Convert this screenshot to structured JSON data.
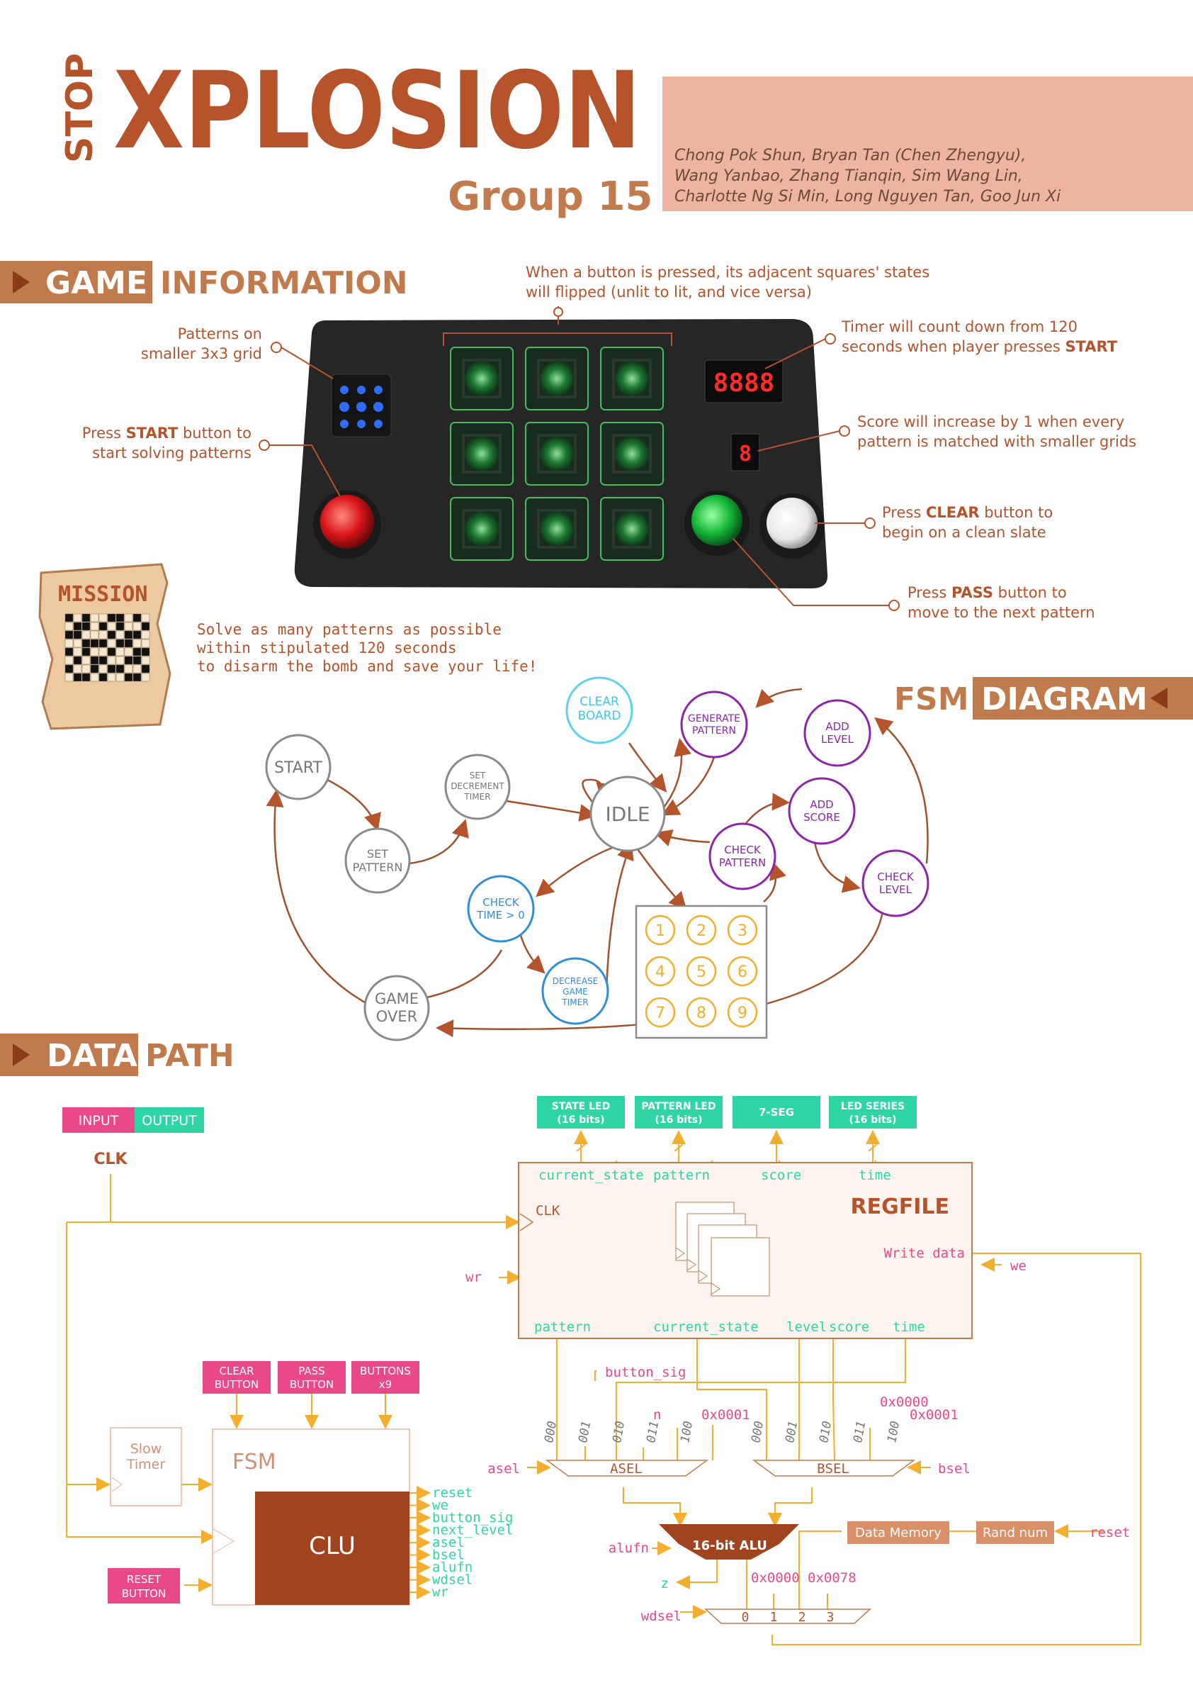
{
  "header": {
    "logo_stop": "STOP",
    "logo_main": "XPLOSION",
    "group": "Group 15",
    "members": [
      "Chong Pok Shun, Bryan Tan (Chen Zhengyu),",
      "Wang Yanbao, Zhang Tianqin, Sim Wang Lin,",
      "Charlotte Ng Si Min, Long Nguyen Tan, Goo Jun Xi"
    ]
  },
  "sections": {
    "game_info_1": "GAME",
    "game_info_2": "INFORMATION",
    "fsm_1": "FSM",
    "fsm_2": "DIAGRAM",
    "datapath_1": "DATA",
    "datapath_2": "PATH"
  },
  "game_info": {
    "ann_button_1": "When a button is pressed, its adjacent squares' states",
    "ann_button_2": "will flipped (unlit to lit, and vice versa)",
    "ann_patterns_1": "Patterns on",
    "ann_patterns_2": "smaller 3x3 grid",
    "ann_start_pre": "Press ",
    "ann_start_bold": "START",
    "ann_start_post": " button to",
    "ann_start_2": "start solving patterns",
    "ann_timer_1": "Timer will count down from 120",
    "ann_timer_2_pre": "seconds when player presses ",
    "ann_timer_2_bold": "START",
    "ann_score_1": "Score will increase by 1 when every",
    "ann_score_2": "pattern is matched with smaller grids",
    "ann_clear_pre": "Press ",
    "ann_clear_bold": "CLEAR",
    "ann_clear_post": " button to",
    "ann_clear_2": "begin on a clean slate",
    "ann_pass_pre": "Press ",
    "ann_pass_bold": "PASS",
    "ann_pass_post": " button to",
    "ann_pass_2": "move to the next pattern",
    "timer_display": "8888",
    "score_display": "8"
  },
  "mission": {
    "title": "MISSION",
    "line1": "Solve as many patterns as possible",
    "line2": "within stipulated 120 seconds",
    "line3": "to disarm the bomb and save your life!"
  },
  "fsm": {
    "start": "START",
    "set_pattern_1": "SET",
    "set_pattern_2": "PATTERN",
    "set_dec_1": "SET",
    "set_dec_2": "DECREMENT",
    "set_dec_3": "TIMER",
    "idle": "IDLE",
    "clear_1": "CLEAR",
    "clear_2": "BOARD",
    "gen_1": "GENERATE",
    "gen_2": "PATTERN",
    "add_level_1": "ADD",
    "add_level_2": "LEVEL",
    "add_score_1": "ADD",
    "add_score_2": "SCORE",
    "check_pattern_1": "CHECK",
    "check_pattern_2": "PATTERN",
    "check_level_1": "CHECK",
    "check_level_2": "LEVEL",
    "check_time_1": "CHECK",
    "check_time_2": "TIME > 0",
    "dec_1": "DECREASE",
    "dec_2": "GAME",
    "dec_3": "TIMER",
    "game_over_1": "GAME",
    "game_over_2": "OVER",
    "grid": [
      "1",
      "2",
      "3",
      "4",
      "5",
      "6",
      "7",
      "8",
      "9"
    ]
  },
  "datapath": {
    "legend_input": "INPUT",
    "legend_output": "OUTPUT",
    "clk": "CLK",
    "out_state_1": "STATE LED",
    "out_state_2": "(16 bits)",
    "out_pattern_1": "PATTERN LED",
    "out_pattern_2": "(16 bits)",
    "out_7seg": "7-SEG",
    "out_series_1": "LED SERIES",
    "out_series_2": "(16 bits)",
    "reg_current_state": "current_state",
    "reg_pattern": "pattern",
    "reg_score": "score",
    "reg_time": "time",
    "regfile": "REGFILE",
    "reg_clk": "CLK",
    "write_data": "Write data",
    "we": "we",
    "wr": "wr",
    "reg_out_pattern": "pattern",
    "reg_out_current_state": "current_state",
    "reg_out_level": "level",
    "reg_out_score": "score",
    "reg_out_time": "time",
    "button_sig": "button_sig",
    "n": "n",
    "c_0001a": "0x0001",
    "c_0000b": "0x0000",
    "c_0001b": "0x0001",
    "sel_codes": [
      "000",
      "001",
      "010",
      "011",
      "100"
    ],
    "asel": "asel",
    "bsel": "bsel",
    "asel_mux": "ASEL",
    "bsel_mux": "BSEL",
    "alu": "16-bit ALU",
    "alufn": "alufn",
    "z": "z",
    "data_memory": "Data Memory",
    "rand_num": "Rand num",
    "reset": "reset",
    "c_0000w": "0x0000",
    "c_0078": "0x0078",
    "wdsel": "wdsel",
    "wd_codes": [
      "0",
      "1",
      "2",
      "3"
    ],
    "in_clear_1": "CLEAR",
    "in_clear_2": "BUTTON",
    "in_pass_1": "PASS",
    "in_pass_2": "BUTTON",
    "in_buttons_1": "BUTTONS",
    "in_buttons_2": "x9",
    "slow_timer_1": "Slow",
    "slow_timer_2": "Timer",
    "fsm": "FSM",
    "clu": "CLU",
    "in_reset_1": "RESET",
    "in_reset_2": "BUTTON",
    "clu_outputs": [
      "reset",
      "we",
      "button_sig",
      "next_level",
      "asel",
      "bsel",
      "alufn",
      "wdsel",
      "wr"
    ]
  }
}
